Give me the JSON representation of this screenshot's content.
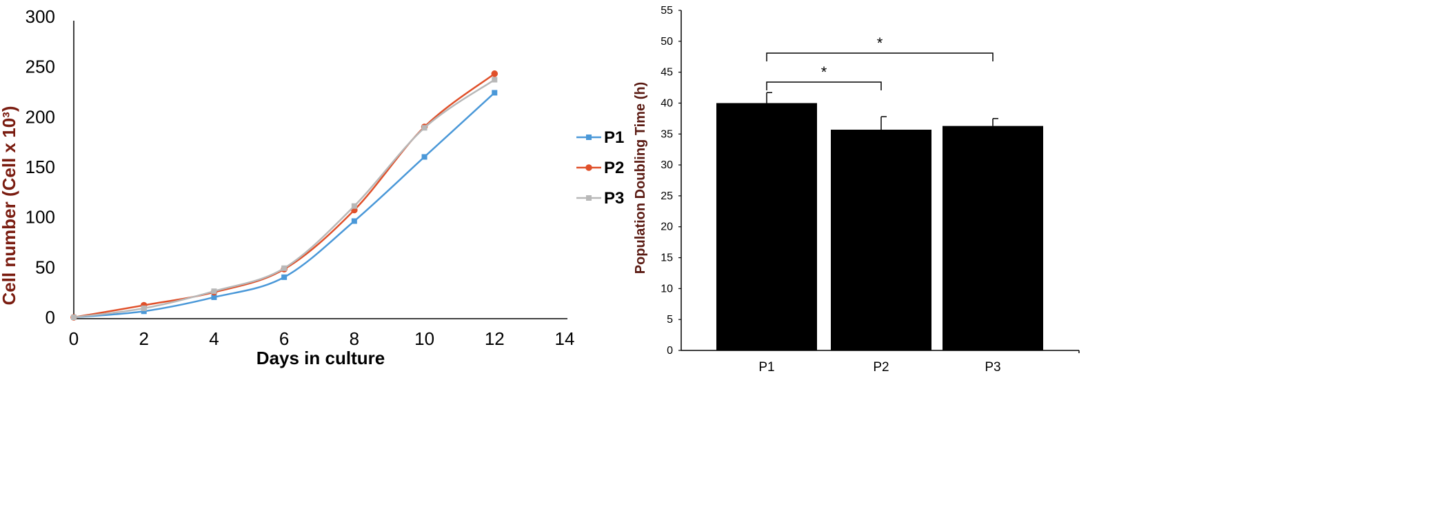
{
  "chart_data": [
    {
      "type": "line",
      "xlabel": "Days in culture",
      "ylabel": "Cell number (Cell x 10³)",
      "xlim": [
        0,
        14
      ],
      "ylim": [
        0,
        300
      ],
      "xticks": [
        "0",
        "2",
        "4",
        "6",
        "8",
        "10",
        "12",
        "14"
      ],
      "yticks": [
        "0",
        "50",
        "100",
        "150",
        "200",
        "250",
        "300"
      ],
      "x": [
        0,
        2,
        4,
        6,
        8,
        10,
        12
      ],
      "grid": false,
      "legend_position": "right",
      "series": [
        {
          "name": "P1",
          "marker": "square",
          "color": "#4a98d8",
          "values": [
            0,
            6,
            20,
            40,
            96,
            160,
            224
          ]
        },
        {
          "name": "P2",
          "marker": "circle",
          "color": "#e0502a",
          "values": [
            0,
            12,
            25,
            48,
            107,
            190,
            243
          ]
        },
        {
          "name": "P3",
          "marker": "square",
          "color": "#b8b8b8",
          "values": [
            0,
            9,
            26,
            49,
            111,
            189,
            237
          ]
        }
      ]
    },
    {
      "type": "bar",
      "ylabel": "Population Doubling Time (h)",
      "ylim": [
        0,
        55
      ],
      "yticks": [
        "0",
        "5",
        "10",
        "15",
        "20",
        "25",
        "30",
        "35",
        "40",
        "45",
        "50",
        "55"
      ],
      "categories": [
        "P1",
        "P2",
        "P3"
      ],
      "values": [
        40,
        35.7,
        36.3
      ],
      "errors": [
        1.7,
        2.1,
        1.2
      ],
      "bar_color": "#000000",
      "grid": false,
      "significance": [
        {
          "from": "P1",
          "to": "P2",
          "label": "*"
        },
        {
          "from": "P1",
          "to": "P3",
          "label": "*"
        }
      ]
    }
  ]
}
